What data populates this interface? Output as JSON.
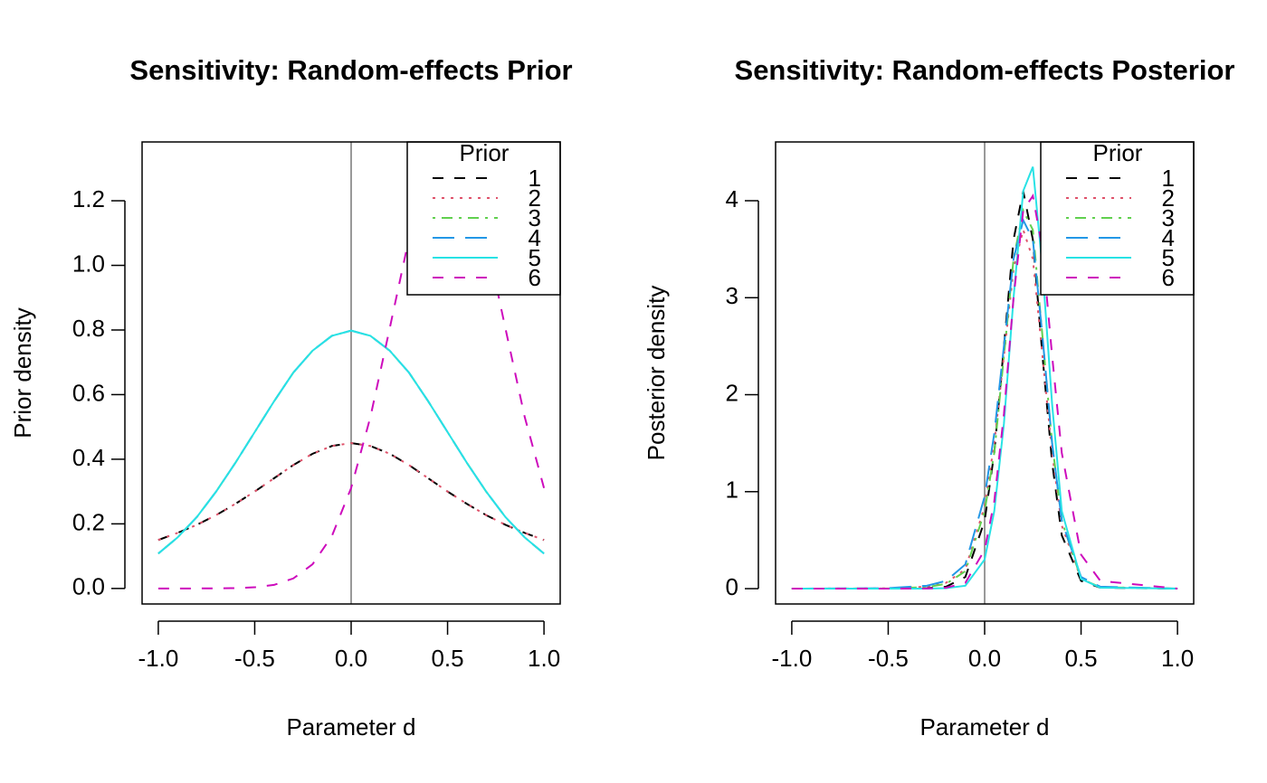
{
  "chart_data": [
    {
      "type": "line",
      "title": "Sensitivity: Random-effects Prior",
      "x_label": "Parameter d",
      "y_label": "Prior density",
      "xlim": [
        -1.084,
        1.084
      ],
      "ylim": [
        -0.048,
        1.382
      ],
      "xticks": [
        {
          "value": -1,
          "label": "-1.0"
        },
        -0.5,
        {
          "value": 0,
          "label": "0.0"
        },
        0.5,
        {
          "value": 1,
          "label": "1.0"
        }
      ],
      "yticks": [
        {
          "value": 0,
          "label": "0.0"
        },
        0.2,
        0.4,
        0.6,
        0.8,
        {
          "value": 1,
          "label": "1.0"
        },
        1.2
      ],
      "vline": 0,
      "legend_title": "Prior",
      "legend_position": "top-right",
      "x": [
        -1,
        -0.9,
        -0.8,
        -0.7,
        -0.6,
        -0.5,
        -0.4,
        -0.3,
        -0.2,
        -0.1,
        0,
        0.1,
        0.2,
        0.3,
        0.4,
        0.5,
        0.6,
        0.7,
        0.8,
        0.9,
        1
      ],
      "series": [
        {
          "name": "1",
          "color": "#000000",
          "dash": "dashed",
          "values": [
            0.15,
            0.172,
            0.197,
            0.227,
            0.262,
            0.3,
            0.341,
            0.382,
            0.417,
            0.441,
            0.45,
            0.441,
            0.417,
            0.382,
            0.341,
            0.3,
            0.262,
            0.227,
            0.197,
            0.172,
            0.15
          ]
        },
        {
          "name": "2",
          "color": "#DF536B",
          "dash": "dotted",
          "values": [
            0.15,
            0.172,
            0.197,
            0.227,
            0.262,
            0.3,
            0.341,
            0.382,
            0.417,
            0.441,
            0.45,
            0.441,
            0.417,
            0.382,
            0.341,
            0.3,
            0.262,
            0.227,
            0.197,
            0.172,
            0.15
          ]
        },
        {
          "name": "3",
          "color": "#61D04F",
          "dash": "dotdash",
          "values": [
            0.108,
            0.158,
            0.221,
            0.3,
            0.389,
            0.484,
            0.579,
            0.668,
            0.736,
            0.782,
            0.798,
            0.782,
            0.736,
            0.668,
            0.579,
            0.484,
            0.389,
            0.3,
            0.221,
            0.158,
            0.108
          ]
        },
        {
          "name": "4",
          "color": "#2297E6",
          "dash": "longdash",
          "values": [
            0.108,
            0.158,
            0.221,
            0.3,
            0.389,
            0.484,
            0.579,
            0.668,
            0.736,
            0.782,
            0.798,
            0.782,
            0.736,
            0.668,
            0.579,
            0.484,
            0.389,
            0.3,
            0.221,
            0.158,
            0.108
          ]
        },
        {
          "name": "5",
          "color": "#28E2E5",
          "dash": "solid",
          "values": [
            0.108,
            0.158,
            0.221,
            0.3,
            0.389,
            0.484,
            0.579,
            0.668,
            0.736,
            0.782,
            0.798,
            0.782,
            0.736,
            0.668,
            0.579,
            0.484,
            0.389,
            0.3,
            0.221,
            0.158,
            0.108
          ]
        },
        {
          "name": "6",
          "color": "#CD0BBC",
          "dash": "dashed",
          "values": [
            0,
            0,
            0.0001,
            0.0003,
            0.001,
            0.0036,
            0.011,
            0.031,
            0.075,
            0.162,
            0.311,
            0.531,
            0.805,
            1.084,
            1.296,
            1.375,
            1.296,
            1.084,
            0.805,
            0.531,
            0.311
          ]
        }
      ]
    },
    {
      "type": "line",
      "title": "Sensitivity: Random-effects Posterior",
      "x_label": "Parameter d",
      "y_label": "Posterior density",
      "xlim": [
        -1.084,
        1.084
      ],
      "ylim": [
        -0.158,
        4.606
      ],
      "xticks": [
        {
          "value": -1,
          "label": "-1.0"
        },
        -0.5,
        {
          "value": 0,
          "label": "0.0"
        },
        0.5,
        {
          "value": 1,
          "label": "1.0"
        }
      ],
      "yticks": [
        0,
        1,
        2,
        3,
        4
      ],
      "vline": 0,
      "legend_title": "Prior",
      "legend_position": "top-right",
      "x": [
        -1,
        -0.5,
        -0.3,
        -0.2,
        -0.1,
        0,
        0.05,
        0.1,
        0.15,
        0.2,
        0.25,
        0.3,
        0.35,
        0.4,
        0.5,
        0.6,
        1
      ],
      "series": [
        {
          "name": "1",
          "color": "#000000",
          "dash": "dashed",
          "values": [
            0,
            0,
            0.005,
            0.02,
            0.12,
            0.7,
            1.4,
            2.5,
            3.6,
            4.1,
            3.6,
            2.4,
            1.3,
            0.55,
            0.08,
            0.01,
            0
          ]
        },
        {
          "name": "2",
          "color": "#DF536B",
          "dash": "dotted",
          "values": [
            0,
            0.003,
            0.02,
            0.06,
            0.2,
            0.85,
            1.5,
            2.4,
            3.3,
            3.7,
            3.4,
            2.4,
            1.4,
            0.65,
            0.1,
            0.015,
            0
          ]
        },
        {
          "name": "3",
          "color": "#61D04F",
          "dash": "dotdash",
          "values": [
            0,
            0.002,
            0.015,
            0.05,
            0.18,
            0.8,
            1.4,
            2.4,
            3.4,
            3.9,
            3.7,
            2.6,
            1.5,
            0.7,
            0.1,
            0.015,
            0
          ]
        },
        {
          "name": "4",
          "color": "#2297E6",
          "dash": "longdash",
          "values": [
            0,
            0.005,
            0.03,
            0.08,
            0.25,
            0.95,
            1.6,
            2.5,
            3.4,
            3.8,
            3.6,
            2.6,
            1.5,
            0.7,
            0.12,
            0.02,
            0
          ]
        },
        {
          "name": "5",
          "color": "#28E2E5",
          "dash": "solid",
          "values": [
            0,
            0,
            0,
            0.005,
            0.03,
            0.3,
            0.8,
            1.7,
            3.0,
            4.1,
            4.35,
            3.3,
            1.9,
            0.8,
            0.1,
            0.01,
            0
          ]
        },
        {
          "name": "6",
          "color": "#CD0BBC",
          "dash": "dashed",
          "values": [
            0,
            0,
            0.002,
            0.01,
            0.06,
            0.4,
            0.9,
            1.8,
            3.0,
            3.9,
            4.05,
            3.5,
            2.4,
            1.4,
            0.35,
            0.08,
            0.001
          ]
        }
      ]
    }
  ]
}
